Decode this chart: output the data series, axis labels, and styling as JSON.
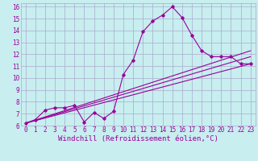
{
  "background_color": "#c8eef0",
  "grid_color": "#aaaacc",
  "line_color": "#990099",
  "xlabel": "Windchill (Refroidissement éolien,°C)",
  "xlim": [
    -0.5,
    23.5
  ],
  "ylim": [
    6,
    16.3
  ],
  "xticks": [
    0,
    1,
    2,
    3,
    4,
    5,
    6,
    7,
    8,
    9,
    10,
    11,
    12,
    13,
    14,
    15,
    16,
    17,
    18,
    19,
    20,
    21,
    22,
    23
  ],
  "yticks": [
    6,
    7,
    8,
    9,
    10,
    11,
    12,
    13,
    14,
    15,
    16
  ],
  "series1_x": [
    0,
    1,
    2,
    3,
    4,
    5,
    6,
    7,
    8,
    9,
    10,
    11,
    12,
    13,
    14,
    15,
    16,
    17,
    18,
    19,
    20,
    21,
    22,
    23
  ],
  "series1_y": [
    6.2,
    6.5,
    7.3,
    7.5,
    7.5,
    7.7,
    6.3,
    7.1,
    6.6,
    7.2,
    10.3,
    11.5,
    13.9,
    14.8,
    15.3,
    16.0,
    15.1,
    13.6,
    12.3,
    11.8,
    11.8,
    11.8,
    11.2,
    11.2
  ],
  "series2_x": [
    0,
    23
  ],
  "series2_y": [
    6.2,
    11.2
  ],
  "series3_x": [
    0,
    23
  ],
  "series3_y": [
    6.2,
    12.3
  ],
  "series4_x": [
    0,
    23
  ],
  "series4_y": [
    6.2,
    11.8
  ],
  "tick_fontsize": 5.5,
  "label_fontsize": 6.5
}
